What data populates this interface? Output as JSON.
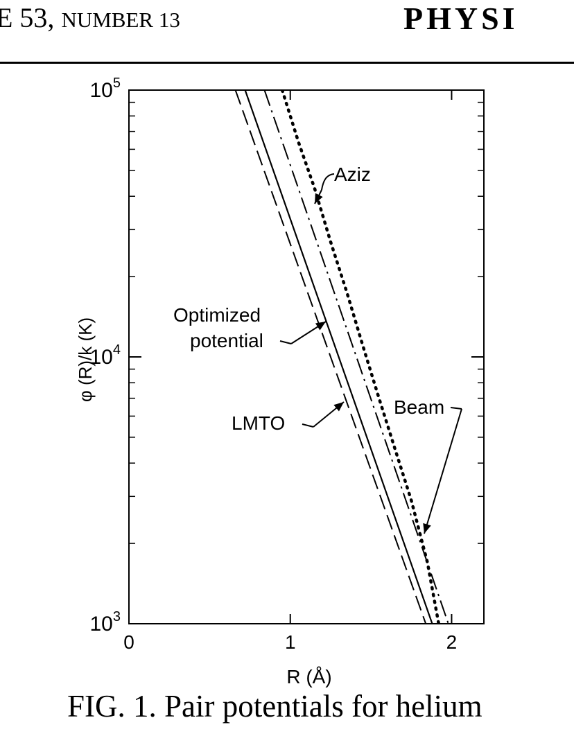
{
  "header": {
    "left_prefix": "E 53, ",
    "left_label": "NUMBER 13",
    "right": "PHYSI"
  },
  "caption": "FIG. 1.  Pair potentials for helium",
  "chart_data": {
    "type": "line",
    "xlabel": "R (Å)",
    "ylabel": "φ (R)/k (K)",
    "xlim": [
      0,
      2.2
    ],
    "ylim": [
      1000,
      100000
    ],
    "yscale": "log",
    "xticks": [
      0,
      1,
      2
    ],
    "xtick_labels": [
      "0",
      "1",
      "2"
    ],
    "yticks": [
      1000,
      10000,
      100000
    ],
    "ytick_labels": [
      [
        "10",
        "3"
      ],
      [
        "10",
        "4"
      ],
      [
        "10",
        "5"
      ]
    ],
    "grid": false,
    "series": [
      {
        "name": "LMTO",
        "style": "dashed",
        "x": [
          0.66,
          1.84
        ],
        "y": [
          100000,
          1000
        ]
      },
      {
        "name": "Optimized potential",
        "style": "solid",
        "x": [
          0.72,
          1.88
        ],
        "y": [
          100000,
          1000
        ]
      },
      {
        "name": "Aziz",
        "style": "dotted",
        "x": [
          0.95,
          1.05,
          1.15,
          1.25,
          1.35,
          1.45,
          1.55,
          1.65,
          1.75,
          1.85,
          1.92
        ],
        "y": [
          100000,
          64000,
          43000,
          27000,
          17500,
          11000,
          7000,
          4500,
          2900,
          1700,
          1000
        ]
      },
      {
        "name": "Beam",
        "style": "dashdot",
        "x": [
          0.84,
          1.98
        ],
        "y": [
          100000,
          1000
        ]
      }
    ],
    "annotations": [
      {
        "text": "Aziz",
        "target_series": "Aziz"
      },
      {
        "text": "Optimized",
        "text2": "potential",
        "target_series": "Optimized potential"
      },
      {
        "text": "LMTO",
        "target_series": "LMTO"
      },
      {
        "text": "Beam",
        "target_series": "Beam"
      }
    ]
  }
}
